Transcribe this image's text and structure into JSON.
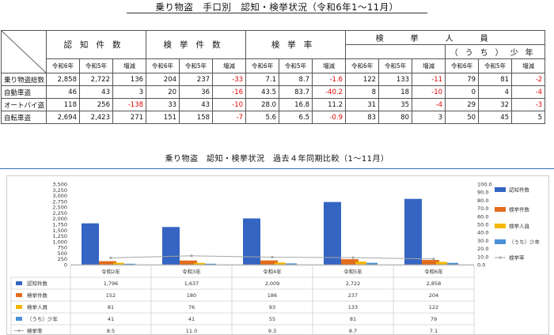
{
  "header": {
    "title": "乗り物盗　手口別　認知・検挙状況（令和6年1〜11月）"
  },
  "table": {
    "group_headers": {
      "cognized": "認知件数",
      "arrests": "検挙件数",
      "rate": "検挙率",
      "persons": "検挙人員",
      "juvenile": "（うち）少年"
    },
    "sub_headers": [
      "令和6年",
      "令和5年",
      "増減",
      "令和6年",
      "令和5年",
      "増減",
      "令和6年",
      "令和5年",
      "増減",
      "令和6年",
      "令和5年",
      "増減",
      "令和6年",
      "令和5年",
      "増減"
    ],
    "rows": [
      {
        "label": "乗り物盗総数",
        "values": [
          "2,858",
          "2,722",
          "136",
          "204",
          "237",
          "-33",
          "7.1",
          "8.7",
          "-1.6",
          "122",
          "133",
          "-11",
          "79",
          "81",
          "-2"
        ]
      },
      {
        "label": "自動車盗",
        "values": [
          "46",
          "43",
          "3",
          "20",
          "36",
          "-16",
          "43.5",
          "83.7",
          "-40.2",
          "8",
          "18",
          "-10",
          "0",
          "4",
          "-4"
        ]
      },
      {
        "label": "オートバイ盗",
        "values": [
          "118",
          "256",
          "-138",
          "33",
          "43",
          "-10",
          "28.0",
          "16.8",
          "11.2",
          "31",
          "35",
          "-4",
          "29",
          "32",
          "-3"
        ]
      },
      {
        "label": "自転車盗",
        "values": [
          "2,694",
          "2,423",
          "271",
          "151",
          "158",
          "-7",
          "5.6",
          "6.5",
          "-0.9",
          "83",
          "80",
          "3",
          "50",
          "45",
          "5"
        ]
      }
    ]
  },
  "chart_title": "乗り物盗　認知・検挙状況　過去４年同期比較（1〜11月）",
  "chart_data": {
    "type": "bar",
    "categories": [
      "令和2年",
      "令和3年",
      "令和4年",
      "令和5年",
      "令和6年"
    ],
    "y_left_ticks": [
      "0",
      "250",
      "500",
      "750",
      "1,000",
      "1,250",
      "1,500",
      "1,750",
      "2,000",
      "2,250",
      "2,500",
      "2,750",
      "3,000",
      "3,250",
      "3,500"
    ],
    "y_right_ticks": [
      "0.0",
      "10.0",
      "20.0",
      "30.0",
      "40.0",
      "50.0",
      "60.0",
      "70.0",
      "80.0",
      "90.0",
      "100.0"
    ],
    "ylim": [
      0,
      3500
    ],
    "y2lim": [
      0,
      100
    ],
    "series": [
      {
        "name": "認知件数",
        "type": "bar",
        "axis": "left",
        "color": "#3565c2",
        "values": [
          1796,
          1637,
          2009,
          2722,
          2858
        ],
        "labels": [
          "1,796",
          "1,637",
          "2,009",
          "2,722",
          "2,858"
        ]
      },
      {
        "name": "検挙件数",
        "type": "bar",
        "axis": "left",
        "color": "#e36c1c",
        "values": [
          152,
          180,
          186,
          237,
          204
        ],
        "labels": [
          "152",
          "180",
          "186",
          "237",
          "204"
        ]
      },
      {
        "name": "検挙人員",
        "type": "bar",
        "axis": "left",
        "color": "#f3b700",
        "values": [
          81,
          76,
          93,
          133,
          122
        ],
        "labels": [
          "81",
          "76",
          "93",
          "133",
          "122"
        ]
      },
      {
        "name": "（うち）少年",
        "type": "bar",
        "axis": "left",
        "color": "#4a90d9",
        "values": [
          41,
          41,
          55,
          81,
          79
        ],
        "labels": [
          "41",
          "41",
          "55",
          "81",
          "79"
        ]
      },
      {
        "name": "検挙率",
        "type": "line",
        "axis": "right",
        "color": "#a6a6a6",
        "values": [
          8.5,
          11.0,
          9.3,
          8.7,
          7.1
        ],
        "labels": [
          "8.5",
          "11.0",
          "9.3",
          "8.7",
          "7.1"
        ]
      }
    ]
  }
}
